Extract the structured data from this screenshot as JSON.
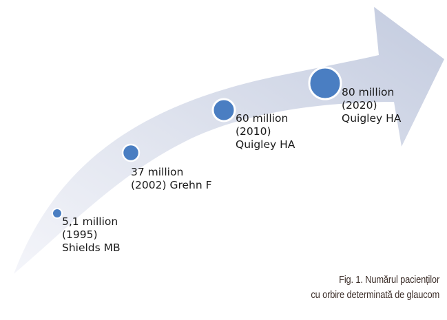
{
  "milestones": [
    {
      "value": "5,1 million",
      "year": "(1995)",
      "source": "Shields MB"
    },
    {
      "value": "37 million",
      "year_source": "(2002) Grehn F"
    },
    {
      "value": "60 million",
      "year": "(2010)",
      "source": "Quigley HA"
    },
    {
      "value": "80 million",
      "year": "(2020)",
      "source": "Quigley HA"
    }
  ],
  "caption": {
    "line1": "Fig. 1. Numărul pacienților",
    "line2": "cu orbire determinată de glaucom"
  },
  "colors": {
    "arrow_fill_light": "#f2f4f9",
    "arrow_fill_dark": "#c5ccdf",
    "dot_fill": "#4a7ec2",
    "dot_stroke": "#ffffff"
  }
}
